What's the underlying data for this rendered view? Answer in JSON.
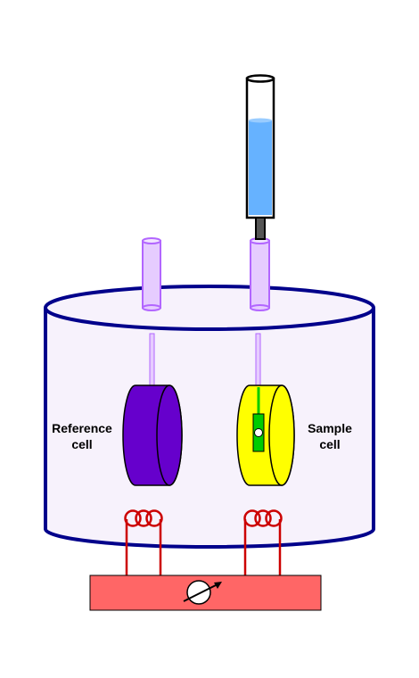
{
  "labels": {
    "reference_cell_line1": "Reference",
    "reference_cell_line2": "cell",
    "sample_cell_line1": "Sample",
    "sample_cell_line2": "cell"
  },
  "components": {
    "syringe": "syringe-icon",
    "injection_port": "injection-port",
    "reference_port": "reference-port",
    "adiabatic_jacket": "adiabatic-jacket",
    "reference_cell": "reference-cell",
    "sample_cell": "sample-cell",
    "stirrer": "stirrer-paddle",
    "heater_coils": "heater-coil-icon",
    "power_unit": "variable-resistor-icon"
  },
  "colors": {
    "jacket_outline": "#00008b",
    "jacket_fill": "#f7f2fc",
    "port_fill": "#e6ccff",
    "port_stroke": "#b266ff",
    "syringe_liquid": "#66b2ff",
    "syringe_needle": "#555555",
    "reference_cell": "#6600cc",
    "sample_cell": "#ffff00",
    "stirrer": "#00cc00",
    "coil": "#cc0000",
    "power_bar": "#ff6666"
  }
}
